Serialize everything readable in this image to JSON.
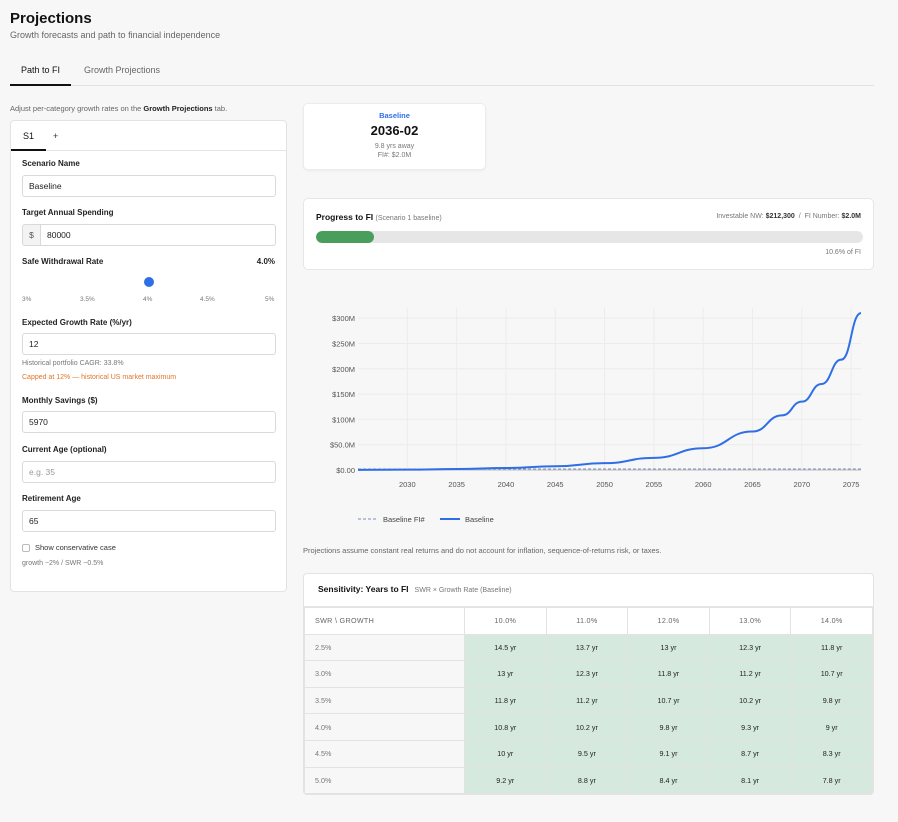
{
  "page": {
    "title": "Projections",
    "subtitle": "Growth forecasts and path to financial independence"
  },
  "tabs": [
    {
      "label": "Path to FI",
      "active": true
    },
    {
      "label": "Growth Projections",
      "active": false
    }
  ],
  "hint": {
    "prefix": "Adjust per-category growth rates on the ",
    "link": "Growth Projections",
    "suffix": " tab."
  },
  "scenario_tabs": [
    {
      "label": "S1",
      "active": true
    },
    {
      "label": "+"
    }
  ],
  "form": {
    "scenario_name_label": "Scenario Name",
    "scenario_name": "Baseline",
    "spending_label": "Target Annual Spending",
    "spending_prefix": "$",
    "spending": "80000",
    "swr_label": "Safe Withdrawal Rate",
    "swr_value": "4.0%",
    "swr_level": 0.5,
    "swr_ticks": [
      "3%",
      "3.5%",
      "4%",
      "4.5%",
      "5%"
    ],
    "growth_label": "Expected Growth Rate (%/yr)",
    "growth": "12",
    "cagr_note": "Historical portfolio CAGR: 33.8%",
    "cap_note": "Capped at 12% — historical US market maximum",
    "savings_label": "Monthly Savings ($)",
    "savings": "5970",
    "age_label": "Current Age (optional)",
    "age_placeholder": "e.g. 35",
    "retire_label": "Retirement Age",
    "retire": "65",
    "conservative_label": "Show conservative case",
    "conservative_note": "growth −2% / SWR −0.5%"
  },
  "baseline_card": {
    "label": "Baseline",
    "date": "2036-02",
    "away": "9.8 yrs away",
    "fi": "FI#: $2.0M"
  },
  "progress": {
    "title": "Progress to FI",
    "subtitle": "(Scenario 1 baseline)",
    "nw_label": "Investable NW:",
    "nw_value": "$212,300",
    "fi_label": "FI Number:",
    "fi_value": "$2.0M",
    "fraction": 0.106,
    "pct_label": "10.6% of FI"
  },
  "chart_data": {
    "type": "line",
    "x_ticks": [
      2030,
      2035,
      2040,
      2045,
      2050,
      2055,
      2060,
      2065,
      2070,
      2075
    ],
    "y_ticks": [
      "$0.00",
      "$50.0M",
      "$100M",
      "$150M",
      "$200M",
      "$250M",
      "$300M"
    ],
    "xlim": [
      2025,
      2076
    ],
    "ylim": [
      0,
      320
    ],
    "y_unit": "$M",
    "series": [
      {
        "name": "Baseline FI#",
        "style": "dashed",
        "color": "#7a8fb8",
        "x": [
          2025,
          2076
        ],
        "y": [
          2.0,
          2.0
        ]
      },
      {
        "name": "Baseline",
        "style": "solid",
        "color": "#2f6fe6",
        "x": [
          2025,
          2030,
          2035,
          2040,
          2045,
          2050,
          2055,
          2060,
          2065,
          2068,
          2070,
          2072,
          2074,
          2076
        ],
        "y": [
          0.2,
          0.8,
          1.9,
          3.9,
          7.4,
          13.5,
          24,
          43,
          76,
          108,
          135,
          170,
          218,
          310
        ]
      }
    ],
    "grid": true,
    "legend": "bottom"
  },
  "disclaimer": "Projections assume constant real returns and do not account for inflation, sequence-of-returns risk, or taxes.",
  "sensitivity": {
    "title": "Sensitivity: Years to FI",
    "subtitle": "SWR × Growth Rate (Baseline)",
    "corner": "SWR \\ GROWTH",
    "columns": [
      "10.0%",
      "11.0%",
      "12.0%",
      "13.0%",
      "14.0%"
    ],
    "rows": [
      {
        "swr": "2.5%",
        "values": [
          "14.5 yr",
          "13.7 yr",
          "13 yr",
          "12.3 yr",
          "11.8 yr"
        ]
      },
      {
        "swr": "3.0%",
        "values": [
          "13 yr",
          "12.3 yr",
          "11.8 yr",
          "11.2 yr",
          "10.7 yr"
        ]
      },
      {
        "swr": "3.5%",
        "values": [
          "11.8 yr",
          "11.2 yr",
          "10.7 yr",
          "10.2 yr",
          "9.8 yr"
        ]
      },
      {
        "swr": "4.0%",
        "values": [
          "10.8 yr",
          "10.2 yr",
          "9.8 yr",
          "9.3 yr",
          "9 yr"
        ]
      },
      {
        "swr": "4.5%",
        "values": [
          "10 yr",
          "9.5 yr",
          "9.1 yr",
          "8.7 yr",
          "8.3 yr"
        ]
      },
      {
        "swr": "5.0%",
        "values": [
          "9.2 yr",
          "8.8 yr",
          "8.4 yr",
          "8.1 yr",
          "7.8 yr"
        ]
      }
    ]
  }
}
